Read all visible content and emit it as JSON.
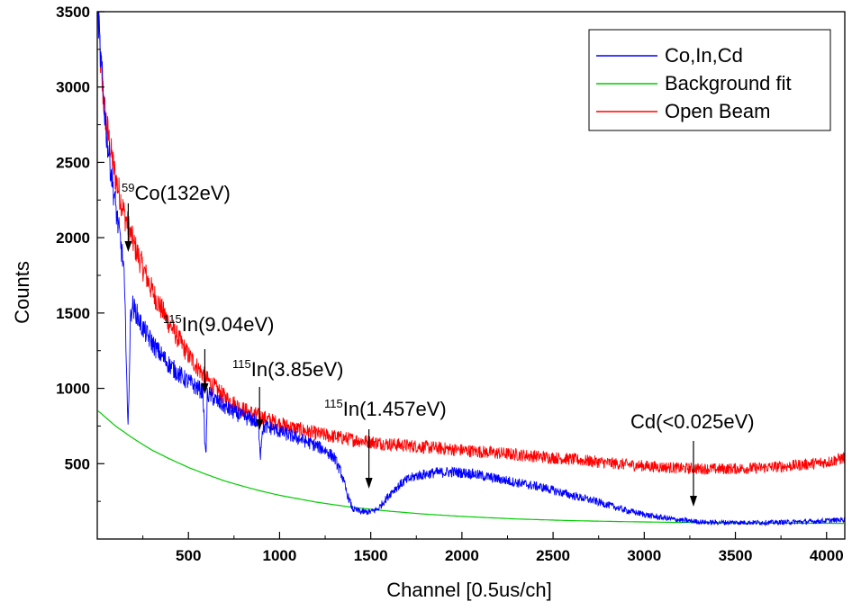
{
  "chart_data": {
    "type": "line",
    "title": "",
    "xlabel": "Channel [0.5us/ch]",
    "ylabel": "Counts",
    "xlim": [
      0,
      4100
    ],
    "ylim": [
      0,
      3500
    ],
    "x_ticks": [
      500,
      1000,
      1500,
      2000,
      2500,
      3000,
      3500,
      4000
    ],
    "y_ticks": [
      500,
      1000,
      1500,
      2000,
      2500,
      3000,
      3500
    ],
    "grid": false,
    "legend_position": "top-right",
    "series": [
      {
        "name": "Co,In,Cd",
        "color": "#0000ff",
        "x": [
          5,
          15,
          30,
          50,
          80,
          110,
          130,
          145,
          160,
          168,
          175,
          182,
          190,
          200,
          215,
          240,
          280,
          330,
          400,
          470,
          540,
          580,
          592,
          597,
          603,
          615,
          650,
          720,
          800,
          860,
          885,
          895,
          905,
          920,
          960,
          1030,
          1100,
          1180,
          1250,
          1300,
          1340,
          1370,
          1400,
          1450,
          1500,
          1540,
          1580,
          1620,
          1680,
          1750,
          1850,
          1950,
          2050,
          2150,
          2300,
          2450,
          2600,
          2750,
          2900,
          3050,
          3200,
          3350,
          3500,
          3700,
          3900,
          4050,
          4100
        ],
        "y": [
          3500,
          3250,
          3000,
          2700,
          2400,
          2120,
          1950,
          1800,
          1200,
          700,
          1050,
          1450,
          1560,
          1530,
          1500,
          1420,
          1340,
          1250,
          1150,
          1070,
          1010,
          980,
          580,
          600,
          950,
          960,
          920,
          860,
          810,
          790,
          740,
          560,
          730,
          745,
          735,
          700,
          670,
          630,
          590,
          540,
          430,
          300,
          200,
          180,
          180,
          200,
          260,
          320,
          380,
          420,
          440,
          445,
          435,
          410,
          375,
          340,
          290,
          245,
          190,
          150,
          125,
          110,
          110,
          110,
          115,
          125,
          130
        ]
      },
      {
        "name": "Background fit",
        "color": "#00cc00",
        "x": [
          5,
          100,
          200,
          300,
          400,
          500,
          600,
          700,
          800,
          900,
          1000,
          1200,
          1400,
          1600,
          1800,
          2000,
          2300,
          2600,
          2900,
          3200,
          3500,
          3800,
          4100
        ],
        "y": [
          850,
          750,
          665,
          590,
          530,
          475,
          428,
          385,
          350,
          318,
          290,
          245,
          210,
          185,
          165,
          150,
          133,
          122,
          115,
          110,
          107,
          105,
          104
        ]
      },
      {
        "name": "Open Beam",
        "color": "#ff0000",
        "x": [
          5,
          20,
          40,
          70,
          100,
          150,
          200,
          250,
          300,
          350,
          400,
          500,
          600,
          700,
          800,
          900,
          1000,
          1100,
          1200,
          1300,
          1400,
          1500,
          1600,
          1800,
          2000,
          2200,
          2400,
          2600,
          2800,
          3000,
          3200,
          3400,
          3600,
          3800,
          4000,
          4100
        ],
        "y": [
          3500,
          3100,
          2850,
          2600,
          2400,
          2150,
          1960,
          1800,
          1650,
          1530,
          1420,
          1220,
          1060,
          940,
          860,
          810,
          765,
          730,
          700,
          680,
          660,
          645,
          630,
          610,
          590,
          570,
          550,
          530,
          505,
          485,
          470,
          465,
          470,
          485,
          510,
          540
        ]
      }
    ],
    "annotations": [
      {
        "mass": "59",
        "text": "Co(132eV)",
        "x": 170
      },
      {
        "mass": "115",
        "text": "In(9.04eV)",
        "x": 590
      },
      {
        "mass": "115",
        "text": "In(3.85eV)",
        "x": 890
      },
      {
        "mass": "115",
        "text": "In(1.457eV)",
        "x": 1490
      },
      {
        "mass": "",
        "text": "Cd(<0.025eV)",
        "x": 3270
      }
    ]
  }
}
